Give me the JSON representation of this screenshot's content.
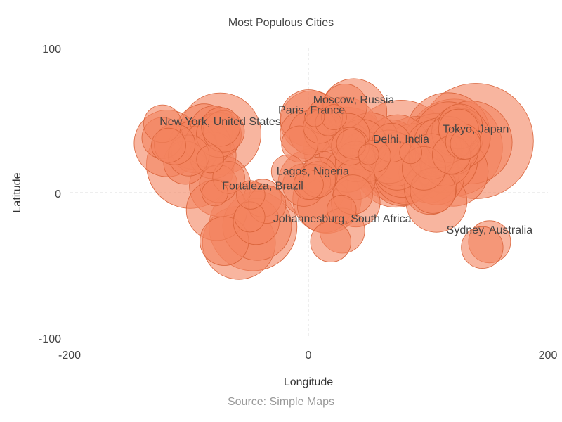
{
  "chart_data": {
    "type": "scatter",
    "title": "Most Populous Cities",
    "xlabel": "Longitude",
    "ylabel": "Latitude",
    "source": "Source: Simple Maps",
    "xlim": [
      -200,
      200
    ],
    "ylim": [
      -100,
      100
    ],
    "xticks": [
      "-200",
      "0",
      "200"
    ],
    "yticks": [
      "100",
      "0",
      "-100"
    ],
    "grid": "dashed zero lines",
    "legend": "none",
    "colors": {
      "fill": "#f4845f",
      "stroke": "#d9633a"
    },
    "size_note": "bubble area proportional to population",
    "points": [
      {
        "x": 139.7,
        "y": 35.7,
        "size": 37.4
      },
      {
        "x": 77.2,
        "y": 28.6,
        "size": 29.4
      },
      {
        "x": 121.5,
        "y": 31.2,
        "size": 26.3
      },
      {
        "x": -46.6,
        "y": -23.5,
        "size": 21.8
      },
      {
        "x": -99.1,
        "y": 19.4,
        "size": 21.6
      },
      {
        "x": 31.2,
        "y": 30.0,
        "size": 20.1
      },
      {
        "x": 72.9,
        "y": 19.1,
        "size": 20.0
      },
      {
        "x": 116.4,
        "y": 39.9,
        "size": 20.0
      },
      {
        "x": 90.4,
        "y": 23.8,
        "size": 19.6
      },
      {
        "x": 135.5,
        "y": 34.7,
        "size": 19.3
      },
      {
        "x": -74.0,
        "y": 40.7,
        "size": 18.8
      },
      {
        "x": 67.0,
        "y": 24.9,
        "size": 15.4
      },
      {
        "x": -58.4,
        "y": -34.6,
        "size": 15.0
      },
      {
        "x": 106.6,
        "y": 29.6,
        "size": 14.8
      },
      {
        "x": 29.0,
        "y": 41.0,
        "size": 14.8
      },
      {
        "x": 88.4,
        "y": 22.6,
        "size": 14.7
      },
      {
        "x": 121.0,
        "y": 14.6,
        "size": 13.5
      },
      {
        "x": 3.4,
        "y": 6.5,
        "size": 13.5
      },
      {
        "x": -43.2,
        "y": -22.9,
        "size": 13.3
      },
      {
        "x": 31.2,
        "y": 30.0,
        "size": 8.5
      },
      {
        "x": 113.3,
        "y": 23.1,
        "size": 12.6
      },
      {
        "x": -118.2,
        "y": 34.1,
        "size": 12.5
      },
      {
        "x": 37.6,
        "y": 55.8,
        "size": 12.4
      },
      {
        "x": 15.3,
        "y": -4.3,
        "size": 13.2
      },
      {
        "x": 117.2,
        "y": 39.1,
        "size": 13.2
      },
      {
        "x": 2.4,
        "y": 48.9,
        "size": 10.9
      },
      {
        "x": 114.1,
        "y": 22.5,
        "size": 11.9
      },
      {
        "x": 106.8,
        "y": -6.2,
        "size": 10.5
      },
      {
        "x": 74.3,
        "y": 31.5,
        "size": 11.7
      },
      {
        "x": 77.6,
        "y": 13.0,
        "size": 11.4
      },
      {
        "x": 100.5,
        "y": 13.8,
        "size": 10.2
      },
      {
        "x": 80.3,
        "y": 13.1,
        "size": 10.5
      },
      {
        "x": 104.1,
        "y": 30.7,
        "size": 8.8
      },
      {
        "x": -77.0,
        "y": -12.0,
        "size": 10.4
      },
      {
        "x": 127.0,
        "y": 37.6,
        "size": 9.9
      },
      {
        "x": -74.1,
        "y": 4.7,
        "size": 10.6
      },
      {
        "x": 118.8,
        "y": 32.1,
        "size": 8.2
      },
      {
        "x": -0.1,
        "y": 51.5,
        "size": 9.1
      },
      {
        "x": 51.4,
        "y": 35.7,
        "size": 9.0
      },
      {
        "x": 78.5,
        "y": 17.4,
        "size": 10.0
      },
      {
        "x": 114.2,
        "y": 22.3,
        "size": 7.4
      },
      {
        "x": -87.6,
        "y": 41.9,
        "size": 8.9
      },
      {
        "x": 72.6,
        "y": 23.0,
        "size": 8.0
      },
      {
        "x": 46.7,
        "y": 24.7,
        "size": 7.2
      },
      {
        "x": 32.5,
        "y": 15.6,
        "size": 5.5
      },
      {
        "x": -43.9,
        "y": -19.9,
        "size": 6.0
      },
      {
        "x": -79.4,
        "y": 43.7,
        "size": 6.2
      },
      {
        "x": 106.7,
        "y": 10.8,
        "size": 8.6
      },
      {
        "x": 123.4,
        "y": 41.8,
        "size": 6.8
      },
      {
        "x": 101.7,
        "y": 3.1,
        "size": 7.7
      },
      {
        "x": 103.8,
        "y": 1.4,
        "size": 5.8
      },
      {
        "x": -96.8,
        "y": 32.8,
        "size": 6.5
      },
      {
        "x": -95.4,
        "y": 29.8,
        "size": 6.1
      },
      {
        "x": -3.7,
        "y": 40.4,
        "size": 6.6
      },
      {
        "x": 73.9,
        "y": 18.5,
        "size": 6.6
      },
      {
        "x": 114.3,
        "y": 30.6,
        "size": 7.9
      },
      {
        "x": 108.9,
        "y": 34.3,
        "size": 7.0
      },
      {
        "x": 125.3,
        "y": 43.9,
        "size": 4.5
      },
      {
        "x": -75.2,
        "y": 40.0,
        "size": 5.7
      },
      {
        "x": -84.4,
        "y": 33.7,
        "size": 5.9
      },
      {
        "x": -80.2,
        "y": 25.8,
        "size": 6.1
      },
      {
        "x": -71.1,
        "y": 42.4,
        "size": 4.8
      },
      {
        "x": -122.4,
        "y": 37.8,
        "size": 4.7
      },
      {
        "x": -73.6,
        "y": 45.5,
        "size": 4.2
      },
      {
        "x": 44.4,
        "y": 33.3,
        "size": 7.1
      },
      {
        "x": 39.2,
        "y": 21.5,
        "size": 4.6
      },
      {
        "x": 13.4,
        "y": 52.5,
        "size": 3.6
      },
      {
        "x": 12.5,
        "y": 41.9,
        "size": 4.3
      },
      {
        "x": 2.2,
        "y": 41.4,
        "size": 5.6
      },
      {
        "x": 30.3,
        "y": 59.9,
        "size": 5.4
      },
      {
        "x": 28.0,
        "y": -26.2,
        "size": 5.7
      },
      {
        "x": 18.4,
        "y": -33.9,
        "size": 4.6
      },
      {
        "x": 36.8,
        "y": -1.3,
        "size": 4.4
      },
      {
        "x": -4.0,
        "y": 5.3,
        "size": 5.1
      },
      {
        "x": -38.5,
        "y": -3.7,
        "size": 4.0
      },
      {
        "x": -34.9,
        "y": -8.1,
        "size": 4.0
      },
      {
        "x": -49.3,
        "y": -16.7,
        "size": 2.6
      },
      {
        "x": -48.5,
        "y": -1.5,
        "size": 2.3
      },
      {
        "x": 151.2,
        "y": -33.9,
        "size": 5.0
      },
      {
        "x": 145.0,
        "y": -37.8,
        "size": 4.9
      },
      {
        "x": 131.0,
        "y": 33.6,
        "size": 2.6
      },
      {
        "x": 129.1,
        "y": 35.2,
        "size": 3.5
      },
      {
        "x": 126.7,
        "y": 45.8,
        "size": 5.6
      },
      {
        "x": 117.0,
        "y": 36.7,
        "size": 6.0
      },
      {
        "x": 120.2,
        "y": 30.3,
        "size": 7.6
      },
      {
        "x": 119.3,
        "y": 26.1,
        "size": 4.1
      },
      {
        "x": 102.7,
        "y": 25.0,
        "size": 5.8
      },
      {
        "x": 96.2,
        "y": 16.8,
        "size": 5.3
      },
      {
        "x": 85.3,
        "y": 27.7,
        "size": 1.4
      },
      {
        "x": 67.0,
        "y": 24.8,
        "size": 8.0
      },
      {
        "x": 69.2,
        "y": 34.5,
        "size": 4.2
      },
      {
        "x": 55.3,
        "y": 25.3,
        "size": 2.9
      },
      {
        "x": 50.0,
        "y": 26.4,
        "size": 1.2
      },
      {
        "x": 35.5,
        "y": 33.9,
        "size": 2.4
      },
      {
        "x": 34.8,
        "y": 32.1,
        "size": 4.0
      },
      {
        "x": 32.9,
        "y": 39.9,
        "size": 5.2
      },
      {
        "x": 21.0,
        "y": 52.2,
        "size": 1.8
      },
      {
        "x": 16.4,
        "y": 48.2,
        "size": 1.9
      },
      {
        "x": 9.2,
        "y": 45.5,
        "size": 3.1
      },
      {
        "x": 4.9,
        "y": 52.4,
        "size": 1.1
      },
      {
        "x": 3.4,
        "y": 7.4,
        "size": 3.6
      },
      {
        "x": 7.5,
        "y": 9.1,
        "size": 3.6
      },
      {
        "x": 8.5,
        "y": 12.0,
        "size": 3.8
      },
      {
        "x": 38.7,
        "y": 9.0,
        "size": 4.6
      },
      {
        "x": 39.3,
        "y": -6.8,
        "size": 6.7
      },
      {
        "x": 13.2,
        "y": -8.8,
        "size": 8.3
      },
      {
        "x": 27.5,
        "y": -11.7,
        "size": 2.4
      },
      {
        "x": -17.4,
        "y": 14.7,
        "size": 3.1
      },
      {
        "x": -7.6,
        "y": 33.6,
        "size": 3.7
      },
      {
        "x": -0.2,
        "y": 5.6,
        "size": 2.5
      },
      {
        "x": -70.6,
        "y": -33.4,
        "size": 6.7
      },
      {
        "x": -66.9,
        "y": 10.5,
        "size": 2.9
      },
      {
        "x": -78.5,
        "y": -0.2,
        "size": 1.9
      },
      {
        "x": -75.6,
        "y": 6.2,
        "size": 4.0
      },
      {
        "x": -82.4,
        "y": 23.1,
        "size": 2.1
      },
      {
        "x": -103.3,
        "y": 20.7,
        "size": 5.2
      },
      {
        "x": -100.3,
        "y": 25.7,
        "size": 4.7
      },
      {
        "x": -112.1,
        "y": 33.4,
        "size": 4.7
      },
      {
        "x": -117.2,
        "y": 32.7,
        "size": 3.3
      },
      {
        "x": -122.3,
        "y": 47.6,
        "size": 4.0
      },
      {
        "x": -77.0,
        "y": 38.9,
        "size": 6.3
      }
    ],
    "labels": [
      {
        "text": "Tokyo, Japan",
        "x": 139.7,
        "y": 35.7
      },
      {
        "text": "Moscow, Russia",
        "x": 37.6,
        "y": 55.8
      },
      {
        "text": "Paris, France",
        "x": 2.4,
        "y": 48.9
      },
      {
        "text": "New York, United States",
        "x": -74.0,
        "y": 40.7
      },
      {
        "text": "Delhi, India",
        "x": 77.2,
        "y": 28.6
      },
      {
        "text": "Lagos, Nigeria",
        "x": 3.4,
        "y": 6.5
      },
      {
        "text": "Fortaleza, Brazil",
        "x": -38.5,
        "y": -3.7
      },
      {
        "text": "Johannesburg, South Africa",
        "x": 28.0,
        "y": -26.2
      },
      {
        "text": "Sydney, Australia",
        "x": 151.2,
        "y": -33.9
      }
    ]
  }
}
